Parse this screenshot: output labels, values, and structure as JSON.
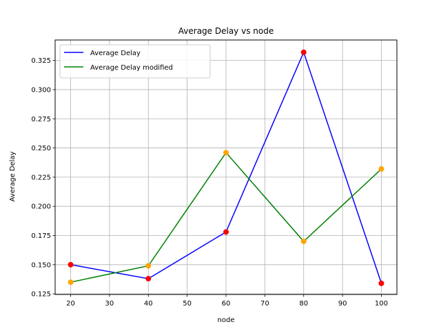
{
  "chart_data": {
    "type": "line",
    "title": "Average Delay vs node",
    "xlabel": "node",
    "ylabel": "Average Delay",
    "x": [
      20,
      40,
      60,
      80,
      100
    ],
    "xlim": [
      16,
      104
    ],
    "ylim": [
      0.1245,
      0.3425
    ],
    "xticks": [
      20,
      30,
      40,
      50,
      60,
      70,
      80,
      90,
      100
    ],
    "yticks": [
      0.125,
      0.15,
      0.175,
      0.2,
      0.225,
      0.25,
      0.275,
      0.3,
      0.325
    ],
    "ytick_labels": [
      "0.125",
      "0.150",
      "0.175",
      "0.200",
      "0.225",
      "0.250",
      "0.275",
      "0.300",
      "0.325"
    ],
    "grid": true,
    "legend_position": "top-left",
    "series": [
      {
        "name": "Average Delay",
        "color": "#0000ff",
        "marker_color": "#ff0000",
        "values": [
          0.15,
          0.138,
          0.178,
          0.332,
          0.134
        ]
      },
      {
        "name": "Average Delay modified",
        "color": "#008000",
        "marker_color": "#ffa500",
        "values": [
          0.135,
          0.149,
          0.246,
          0.17,
          0.232
        ]
      }
    ]
  }
}
